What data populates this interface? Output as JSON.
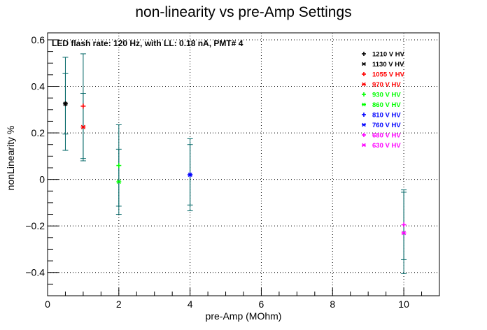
{
  "chart_data": {
    "type": "scatter",
    "title": "non-linearity vs pre-Amp Settings",
    "xlabel": "pre-Amp (MOhm)",
    "ylabel": "nonLinearity %",
    "annotation": "LED flash rate: 120 Hz, with LL: 0.18 nA, PMT# 4",
    "xlim": [
      0,
      11
    ],
    "ylim": [
      -0.5,
      0.63
    ],
    "x_ticks": [
      "0",
      "2",
      "4",
      "6",
      "8",
      "10"
    ],
    "y_ticks": [
      "−0.4",
      "−0.2",
      "0",
      "0.2",
      "0.4",
      "0.6"
    ],
    "grid": true,
    "legend_position": "top-right",
    "error_bar_color": "#006666",
    "series": [
      {
        "name": "1210 V HV",
        "color": "#000000",
        "marker": "+",
        "points": [
          {
            "x": 0.5,
            "y": 0.325,
            "err": 0.2
          }
        ]
      },
      {
        "name": "1130 V HV",
        "color": "#000000",
        "marker": "*",
        "points": [
          {
            "x": 0.5,
            "y": 0.325,
            "err": 0.13
          }
        ]
      },
      {
        "name": "1055 V HV",
        "color": "#ff0000",
        "marker": "+",
        "points": [
          {
            "x": 1,
            "y": 0.315,
            "err": 0.225
          }
        ]
      },
      {
        "name": "970 V HV",
        "color": "#ff0000",
        "marker": "*",
        "points": [
          {
            "x": 1,
            "y": 0.225,
            "err": 0.145
          }
        ]
      },
      {
        "name": "930 V HV",
        "color": "#00ff00",
        "marker": "+",
        "points": [
          {
            "x": 2,
            "y": 0.06,
            "err": 0.175
          }
        ]
      },
      {
        "name": "860 V HV",
        "color": "#00ff00",
        "marker": "*",
        "points": [
          {
            "x": 2,
            "y": -0.01,
            "err": 0.14
          }
        ]
      },
      {
        "name": "810 V HV",
        "color": "#0000ff",
        "marker": "+",
        "points": [
          {
            "x": 4,
            "y": 0.02,
            "err": 0.155
          }
        ]
      },
      {
        "name": "760 V HV",
        "color": "#0000ff",
        "marker": "*",
        "points": [
          {
            "x": 4,
            "y": 0.02,
            "err": 0.13
          }
        ]
      },
      {
        "name": "680 V HV",
        "color": "#ff00ff",
        "marker": "+",
        "points": [
          {
            "x": 10,
            "y": -0.195,
            "err": 0.15
          }
        ]
      },
      {
        "name": "630 V HV",
        "color": "#ff00ff",
        "marker": "*",
        "points": [
          {
            "x": 10,
            "y": -0.23,
            "err": 0.175
          }
        ]
      }
    ]
  }
}
